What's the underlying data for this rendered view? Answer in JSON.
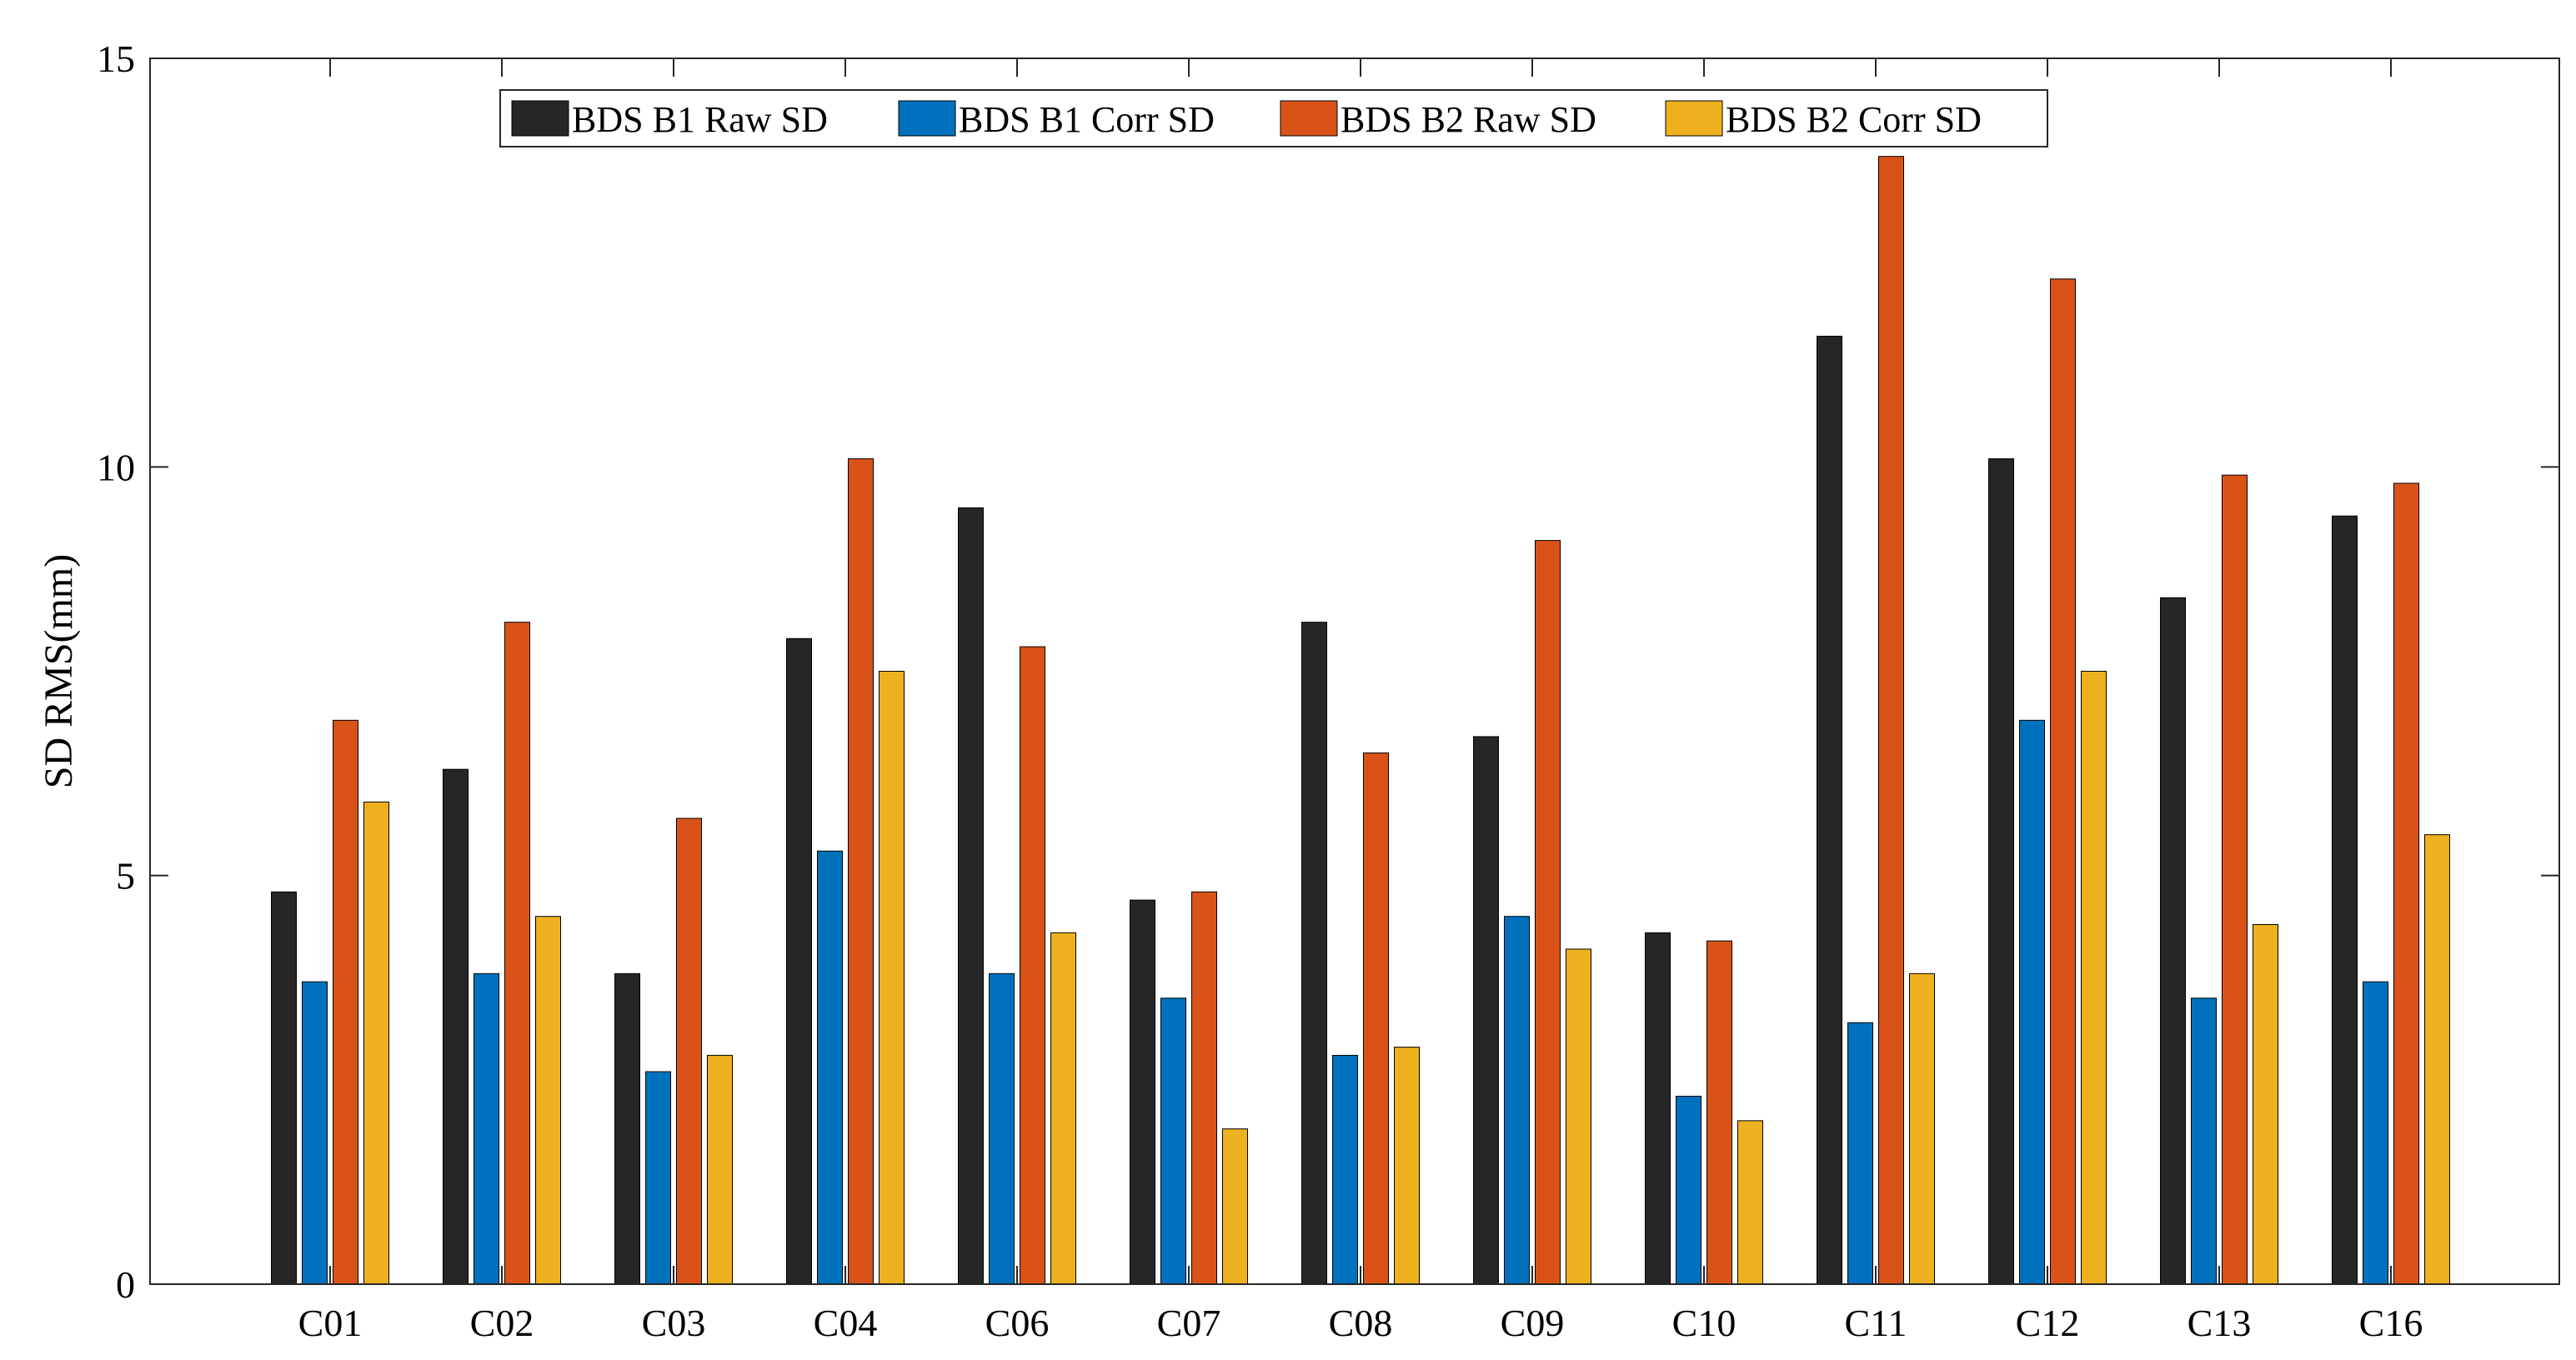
{
  "chart_data": {
    "type": "bar",
    "title": "",
    "xlabel": "",
    "ylabel": "SD RMS(mm)",
    "ylim": [
      0,
      15
    ],
    "yticks": [
      0,
      5,
      10,
      15
    ],
    "grid": false,
    "legend_position": "top-center",
    "categories": [
      "C01",
      "C02",
      "C03",
      "C04",
      "C06",
      "C07",
      "C08",
      "C09",
      "C10",
      "C11",
      "C12",
      "C13",
      "C16"
    ],
    "series": [
      {
        "name": "BDS B1 Raw SD",
        "color": "#262626",
        "values": [
          4.8,
          6.3,
          3.8,
          7.9,
          9.5,
          4.7,
          8.1,
          6.7,
          4.3,
          11.6,
          10.1,
          8.4,
          9.4
        ]
      },
      {
        "name": "BDS B1 Corr SD",
        "color": "#0072BD",
        "values": [
          3.7,
          3.8,
          2.6,
          5.3,
          3.8,
          3.5,
          2.8,
          4.5,
          2.3,
          3.2,
          6.9,
          3.5,
          3.7
        ]
      },
      {
        "name": "BDS B2 Raw SD",
        "color": "#D95319",
        "values": [
          6.9,
          8.1,
          5.7,
          10.1,
          7.8,
          4.8,
          6.5,
          9.1,
          4.2,
          13.8,
          12.3,
          9.9,
          9.8
        ]
      },
      {
        "name": "BDS B2 Corr SD",
        "color": "#EDB120",
        "values": [
          5.9,
          4.5,
          2.8,
          7.5,
          4.3,
          1.9,
          2.9,
          4.1,
          2.0,
          3.8,
          7.5,
          4.4,
          5.5
        ]
      }
    ]
  }
}
